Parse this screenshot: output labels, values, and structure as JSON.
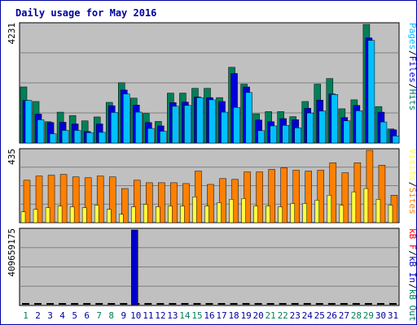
{
  "title": "Daily usage for May 2016",
  "colors": {
    "frame": "#0000a0",
    "background": "#ffffff",
    "plot_bg": "#c0c0c0",
    "grid": "#808080",
    "pages": "#00c0ff",
    "files": "#0000d8",
    "hits": "#00805a",
    "sites": "#ff8000",
    "visits": "#ffff40",
    "kb_in": "#0000c8",
    "kb_out": "#00805a",
    "kb_f": "#ff0000",
    "weekend": "#00805a",
    "weekday": "#0000a0"
  },
  "chart_data": [
    {
      "type": "bar",
      "panel": "hits-files-pages",
      "max_label": "4231",
      "ylim": [
        0,
        4231
      ],
      "legend": [
        {
          "key": "pages",
          "text": "Pages",
          "color": "#00c0ff"
        },
        {
          "key": "sep1",
          "text": "/",
          "color": "#000000"
        },
        {
          "key": "files",
          "text": "Files",
          "color": "#0000d8"
        },
        {
          "key": "sep2",
          "text": "/",
          "color": "#000000"
        },
        {
          "key": "hits",
          "text": "Hits",
          "color": "#00805a"
        }
      ],
      "categories": [
        "1",
        "2",
        "3",
        "4",
        "5",
        "6",
        "7",
        "8",
        "9",
        "10",
        "11",
        "12",
        "13",
        "14",
        "15",
        "16",
        "17",
        "18",
        "19",
        "20",
        "21",
        "22",
        "23",
        "24",
        "25",
        "26",
        "27",
        "28",
        "29",
        "30",
        "31"
      ],
      "series": [
        {
          "name": "Hits",
          "values": [
            2000,
            1480,
            760,
            1100,
            980,
            790,
            930,
            1450,
            2150,
            1600,
            1050,
            770,
            1780,
            1780,
            1950,
            1950,
            1620,
            2700,
            2100,
            1040,
            1120,
            1120,
            940,
            1480,
            2100,
            2300,
            1220,
            1540,
            4231,
            1300,
            500
          ]
        },
        {
          "name": "Files",
          "values": [
            1520,
            1030,
            730,
            740,
            680,
            410,
            680,
            1330,
            1890,
            1350,
            730,
            610,
            1440,
            1460,
            1640,
            1620,
            1480,
            2480,
            2000,
            820,
            760,
            870,
            830,
            1240,
            1530,
            1750,
            910,
            1340,
            3750,
            1100,
            470
          ]
        },
        {
          "name": "Pages",
          "values": [
            1520,
            830,
            330,
            450,
            450,
            370,
            380,
            1090,
            1750,
            1100,
            520,
            420,
            1310,
            1340,
            1620,
            1540,
            1100,
            1270,
            1800,
            440,
            610,
            630,
            540,
            1070,
            1140,
            1730,
            790,
            1150,
            3660,
            750,
            250
          ]
        }
      ]
    },
    {
      "type": "bar",
      "panel": "sites-visits",
      "max_label": "435",
      "ylim": [
        0,
        435
      ],
      "legend": [
        {
          "key": "visits",
          "text": "Visits",
          "color": "#ffff40"
        },
        {
          "key": "sep1",
          "text": "/",
          "color": "#000000"
        },
        {
          "key": "sites",
          "text": "Sites",
          "color": "#ff8000"
        }
      ],
      "categories": [
        "1",
        "2",
        "3",
        "4",
        "5",
        "6",
        "7",
        "8",
        "9",
        "10",
        "11",
        "12",
        "13",
        "14",
        "15",
        "16",
        "17",
        "18",
        "19",
        "20",
        "21",
        "22",
        "23",
        "24",
        "25",
        "26",
        "27",
        "28",
        "29",
        "30",
        "31"
      ],
      "series": [
        {
          "name": "Sites",
          "values": [
            255,
            280,
            285,
            290,
            275,
            270,
            280,
            275,
            205,
            255,
            240,
            240,
            240,
            235,
            310,
            230,
            265,
            260,
            305,
            305,
            320,
            330,
            315,
            310,
            315,
            360,
            300,
            360,
            435,
            345,
            165
          ]
        },
        {
          "name": "Visits",
          "values": [
            65,
            80,
            90,
            100,
            95,
            90,
            105,
            80,
            50,
            95,
            110,
            95,
            100,
            100,
            155,
            100,
            120,
            140,
            145,
            100,
            100,
            95,
            115,
            115,
            135,
            165,
            105,
            185,
            205,
            140,
            105
          ]
        }
      ]
    },
    {
      "type": "bar",
      "panel": "kbytes",
      "max_label": "409659175",
      "ylim": [
        0,
        409659175
      ],
      "legend": [
        {
          "key": "kb_f",
          "text": "kB F",
          "color": "#ff0000"
        },
        {
          "key": "sep1",
          "text": "/",
          "color": "#000000"
        },
        {
          "key": "kb_in",
          "text": "kB In",
          "color": "#0000c8"
        },
        {
          "key": "sep2",
          "text": "/",
          "color": "#000000"
        },
        {
          "key": "kb_out",
          "text": "kB Out",
          "color": "#00805a"
        }
      ],
      "categories": [
        "1",
        "2",
        "3",
        "4",
        "5",
        "6",
        "7",
        "8",
        "9",
        "10",
        "11",
        "12",
        "13",
        "14",
        "15",
        "16",
        "17",
        "18",
        "19",
        "20",
        "21",
        "22",
        "23",
        "24",
        "25",
        "26",
        "27",
        "28",
        "29",
        "30",
        "31"
      ],
      "series": [
        {
          "name": "kB In",
          "values": [
            0,
            0,
            0,
            0,
            0,
            0,
            0,
            0,
            0,
            409659175,
            0,
            0,
            0,
            0,
            0,
            0,
            0,
            0,
            0,
            0,
            0,
            0,
            0,
            0,
            0,
            0,
            0,
            0,
            0,
            0,
            0
          ]
        },
        {
          "name": "kB Out",
          "values": [
            1,
            1,
            1,
            1,
            1,
            1,
            1,
            1,
            1,
            1,
            1,
            1,
            1,
            1,
            1,
            1,
            1,
            1,
            1,
            1,
            1,
            1,
            1,
            1,
            1,
            1,
            1,
            1,
            1,
            1,
            1
          ]
        }
      ]
    }
  ],
  "weekend_days": [
    1,
    7,
    8,
    14,
    15,
    21,
    22,
    28,
    29
  ]
}
